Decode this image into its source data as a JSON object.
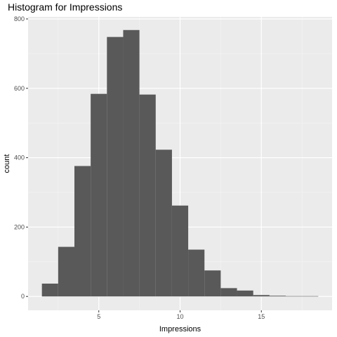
{
  "chart_data": {
    "type": "bar",
    "title": "Histogram for Impressions",
    "xlabel": "Impressions",
    "ylabel": "count",
    "bins": [
      {
        "x0": 1.5,
        "x1": 2.5,
        "count": 37
      },
      {
        "x0": 2.5,
        "x1": 3.5,
        "count": 143
      },
      {
        "x0": 3.5,
        "x1": 4.5,
        "count": 376
      },
      {
        "x0": 4.5,
        "x1": 5.5,
        "count": 584
      },
      {
        "x0": 5.5,
        "x1": 6.5,
        "count": 748
      },
      {
        "x0": 6.5,
        "x1": 7.5,
        "count": 768
      },
      {
        "x0": 7.5,
        "x1": 8.5,
        "count": 582
      },
      {
        "x0": 8.5,
        "x1": 9.5,
        "count": 423
      },
      {
        "x0": 9.5,
        "x1": 10.5,
        "count": 262
      },
      {
        "x0": 10.5,
        "x1": 11.5,
        "count": 135
      },
      {
        "x0": 11.5,
        "x1": 12.5,
        "count": 75
      },
      {
        "x0": 12.5,
        "x1": 13.5,
        "count": 24
      },
      {
        "x0": 13.5,
        "x1": 14.5,
        "count": 17
      },
      {
        "x0": 14.5,
        "x1": 15.5,
        "count": 4
      },
      {
        "x0": 15.5,
        "x1": 16.5,
        "count": 2
      },
      {
        "x0": 16.5,
        "x1": 17.5,
        "count": 1
      },
      {
        "x0": 17.5,
        "x1": 18.5,
        "count": 1
      }
    ],
    "xlim": [
      0.65,
      19.35
    ],
    "ylim": [
      -40,
      806
    ],
    "x_ticks": [
      5,
      10,
      15
    ],
    "x_minor": [
      2.5,
      7.5,
      12.5,
      17.5
    ],
    "y_ticks": [
      0,
      200,
      400,
      600,
      800
    ],
    "y_minor": [
      100,
      300,
      500,
      700
    ],
    "x_tick_labels": [
      "5",
      "10",
      "15"
    ],
    "y_tick_labels": [
      "0",
      "200",
      "400",
      "600",
      "800"
    ],
    "grid": true,
    "legend": "none",
    "colors": {
      "bar": "#595959",
      "panel": "#EBEBEB",
      "grid_major": "#FFFFFF",
      "grid_minor": "#F5F5F5",
      "tick": "#333333"
    }
  }
}
